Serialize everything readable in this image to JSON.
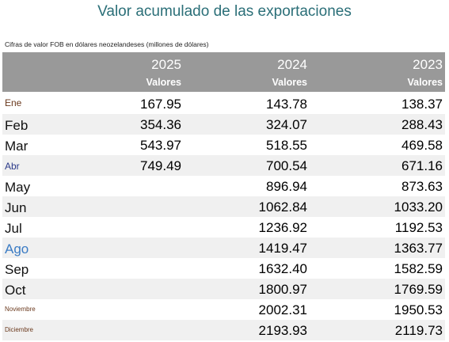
{
  "title": "Valor acumulado de las exportaciones",
  "subtitle": "Cifras de valor FOB en dólares neozelandeses (millones de dólares)",
  "header": {
    "years": [
      "2025",
      "2024",
      "2023"
    ],
    "sub": [
      "Valores",
      "Valores",
      "Valores"
    ]
  },
  "rows": [
    {
      "month": "Ene",
      "v2025": "167.95",
      "v2024": "143.78",
      "v2023": "138.37"
    },
    {
      "month": "Feb",
      "v2025": "354.36",
      "v2024": "324.07",
      "v2023": "288.43"
    },
    {
      "month": "Mar",
      "v2025": "543.97",
      "v2024": "518.55",
      "v2023": "469.58"
    },
    {
      "month": "Abr",
      "v2025": "749.49",
      "v2024": "700.54",
      "v2023": "671.16"
    },
    {
      "month": "May",
      "v2025": "",
      "v2024": "896.94",
      "v2023": "873.63"
    },
    {
      "month": "Jun",
      "v2025": "",
      "v2024": "1062.84",
      "v2023": "1033.20"
    },
    {
      "month": "Jul",
      "v2025": "",
      "v2024": "1236.92",
      "v2023": "1192.53"
    },
    {
      "month": "Ago",
      "v2025": "",
      "v2024": "1419.47",
      "v2023": "1363.77"
    },
    {
      "month": "Sep",
      "v2025": "",
      "v2024": "1632.40",
      "v2023": "1582.59"
    },
    {
      "month": "Oct",
      "v2025": "",
      "v2024": "1800.97",
      "v2023": "1769.59"
    },
    {
      "month": "Noviembre",
      "v2025": "",
      "v2024": "2002.31",
      "v2023": "1950.53"
    },
    {
      "month": "Diciembre",
      "v2025": "",
      "v2024": "2193.93",
      "v2023": "2119.73"
    }
  ]
}
